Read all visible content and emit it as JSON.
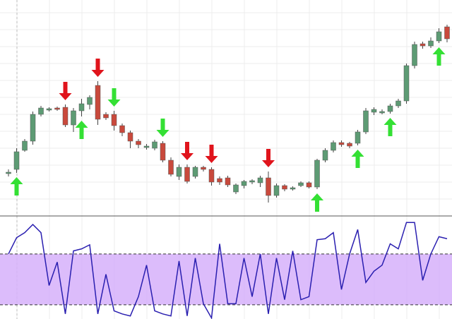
{
  "chart_data": [
    {
      "type": "candlestick",
      "up_color": "#5d9b74",
      "down_color": "#c9493c",
      "ylim": [
        0,
        305
      ],
      "open": [
        59,
        65,
        92,
        105,
        143,
        149,
        152,
        153,
        128,
        148,
        157,
        184,
        143,
        143,
        127,
        117,
        105,
        96,
        95,
        102,
        78,
        55,
        68,
        55,
        68,
        65,
        52,
        53,
        33,
        42,
        47,
        46,
        53,
        28,
        42,
        37,
        42,
        46,
        40,
        78,
        92,
        103,
        102,
        102,
        118,
        146,
        146,
        147,
        155,
        162,
        212,
        243,
        240,
        247,
        267
      ],
      "high": [
        65,
        95,
        108,
        147,
        155,
        153,
        154,
        157,
        152,
        165,
        170,
        190,
        146,
        148,
        130,
        120,
        108,
        101,
        107,
        105,
        82,
        72,
        72,
        70,
        70,
        68,
        55,
        56,
        45,
        50,
        51,
        56,
        62,
        45,
        44,
        41,
        48,
        48,
        80,
        95,
        106,
        106,
        104,
        121,
        152,
        153,
        150,
        158,
        165,
        215,
        246,
        246,
        252,
        265,
        270
      ],
      "low": [
        55,
        60,
        90,
        100,
        140,
        147,
        148,
        125,
        118,
        140,
        150,
        128,
        135,
        120,
        112,
        95,
        95,
        93,
        92,
        75,
        55,
        50,
        45,
        52,
        62,
        42,
        43,
        40,
        30,
        38,
        44,
        40,
        18,
        25,
        34,
        35,
        40,
        38,
        37,
        75,
        89,
        97,
        95,
        99,
        115,
        142,
        143,
        144,
        152,
        158,
        208,
        236,
        237,
        244,
        245
      ],
      "close": [
        61,
        90,
        105,
        143,
        152,
        151,
        150,
        128,
        148,
        158,
        167,
        136,
        138,
        127,
        117,
        105,
        100,
        98,
        104,
        78,
        58,
        68,
        48,
        68,
        65,
        47,
        47,
        43,
        43,
        48,
        49,
        53,
        28,
        42,
        37,
        39,
        46,
        40,
        78,
        92,
        103,
        100,
        98,
        118,
        148,
        150,
        147,
        155,
        162,
        212,
        242,
        240,
        247,
        260,
        250
      ],
      "signals": [
        {
          "color": "#e0141c",
          "direction": "down",
          "indices": [
            7,
            11,
            22,
            25,
            32
          ]
        },
        {
          "color": "#34e034",
          "direction": "down",
          "indices": [
            13,
            19
          ]
        },
        {
          "color": "#34e034",
          "direction": "up",
          "indices": [
            1,
            9,
            38,
            43,
            47,
            53
          ]
        }
      ]
    },
    {
      "type": "line",
      "color": "#2a1fb0",
      "band": [
        14,
        64
      ],
      "band_color": "#d6b0fa",
      "ylim": [
        0,
        100
      ],
      "values": [
        64,
        80,
        85,
        93,
        85,
        33,
        56,
        5,
        67,
        69,
        73,
        5,
        44,
        8,
        5,
        3,
        22,
        53,
        8,
        5,
        3,
        57,
        3,
        60,
        15,
        1,
        74,
        15,
        15,
        60,
        22,
        64,
        5,
        60,
        19,
        67,
        19,
        22,
        78,
        79,
        85,
        29,
        64,
        88,
        36,
        47,
        53,
        74,
        69,
        95,
        95,
        38,
        64,
        81,
        79
      ]
    }
  ]
}
